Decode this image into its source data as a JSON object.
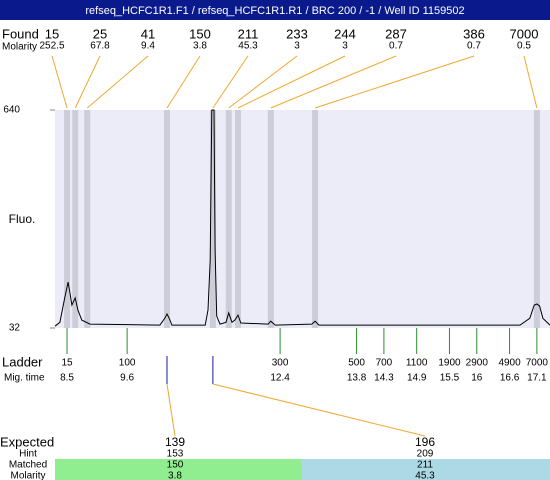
{
  "title": "refseq_HCFC1R1.F1 / refseq_HCFC1R1.R1 / BRC 200 / -1 / Well ID 1159502",
  "chart_data": {
    "type": "line",
    "y_label": "Fluo.",
    "color": "#000000",
    "ylim": [
      32,
      640
    ],
    "yticks": [
      32,
      640
    ],
    "xlim": [
      8.28,
      17.34
    ],
    "x": [
      8.28,
      8.37,
      8.45,
      8.52,
      8.55,
      8.59,
      8.65,
      8.7,
      8.77,
      8.92,
      10.2,
      10.29,
      10.33,
      10.37,
      10.42,
      11.03,
      11.08,
      11.12,
      11.15,
      11.19,
      11.21,
      11.24,
      11.3,
      11.41,
      11.46,
      11.52,
      11.57,
      11.63,
      11.68,
      12.18,
      12.23,
      12.31,
      12.98,
      13.04,
      13.11,
      16.79,
      16.97,
      17.05,
      17.1,
      17.15,
      17.21,
      17.34
    ],
    "values": [
      37,
      48,
      110,
      160,
      132,
      96,
      116,
      82,
      54,
      43,
      40,
      59,
      71,
      59,
      40,
      40,
      82,
      221,
      640,
      640,
      249,
      65,
      43,
      48,
      74,
      48,
      54,
      68,
      46,
      43,
      51,
      40,
      43,
      51,
      40,
      40,
      59,
      96,
      99,
      93,
      59,
      40
    ]
  },
  "found": {
    "label": "Found",
    "molarity_label": "Molarity",
    "peaks": [
      {
        "size": 15,
        "molarity": 252.5,
        "time": 8.5
      },
      {
        "size": 25,
        "molarity": 67.8,
        "time": 8.65
      },
      {
        "size": 41,
        "molarity": 9.4,
        "time": 8.87
      },
      {
        "size": 150,
        "molarity": 3.8,
        "time": 10.33
      },
      {
        "size": 211,
        "molarity": 45.3,
        "time": 11.17
      },
      {
        "size": 233,
        "molarity": 3,
        "time": 11.46
      },
      {
        "size": 244,
        "molarity": 3,
        "time": 11.63
      },
      {
        "size": 287,
        "molarity": 0.7,
        "time": 12.23
      },
      {
        "size": 386,
        "molarity": 0.7,
        "time": 13.04
      },
      {
        "size": 7000,
        "molarity": 0.5,
        "time": 17.1
      }
    ]
  },
  "ladder": {
    "label": "Ladder",
    "time_label": "Mig. time",
    "peaks": [
      {
        "size": 15,
        "time": 8.5
      },
      {
        "size": 100,
        "time": 9.6
      },
      {
        "size": 300,
        "time": 12.4
      },
      {
        "size": 500,
        "time": 13.8
      },
      {
        "size": 700,
        "time": 14.3
      },
      {
        "size": 1100,
        "time": 14.9
      },
      {
        "size": 1900,
        "time": 15.5
      },
      {
        "size": 2900,
        "time": 16
      },
      {
        "size": 4900,
        "time": 16.6
      },
      {
        "size": 7000,
        "time": 17.1
      }
    ]
  },
  "expected": {
    "label": "Expected",
    "hint_label": "Hint",
    "matched_label": "Matched",
    "molarity_label": "Molarity",
    "peaks": [
      {
        "size": 139,
        "hint": 153,
        "matched": 150,
        "molarity": 3.8,
        "time": 10.33,
        "color": "#90ee90"
      },
      {
        "size": 196,
        "hint": 209,
        "matched": 211,
        "molarity": 45.3,
        "time": 11.17,
        "color": "#add8e6"
      }
    ]
  }
}
